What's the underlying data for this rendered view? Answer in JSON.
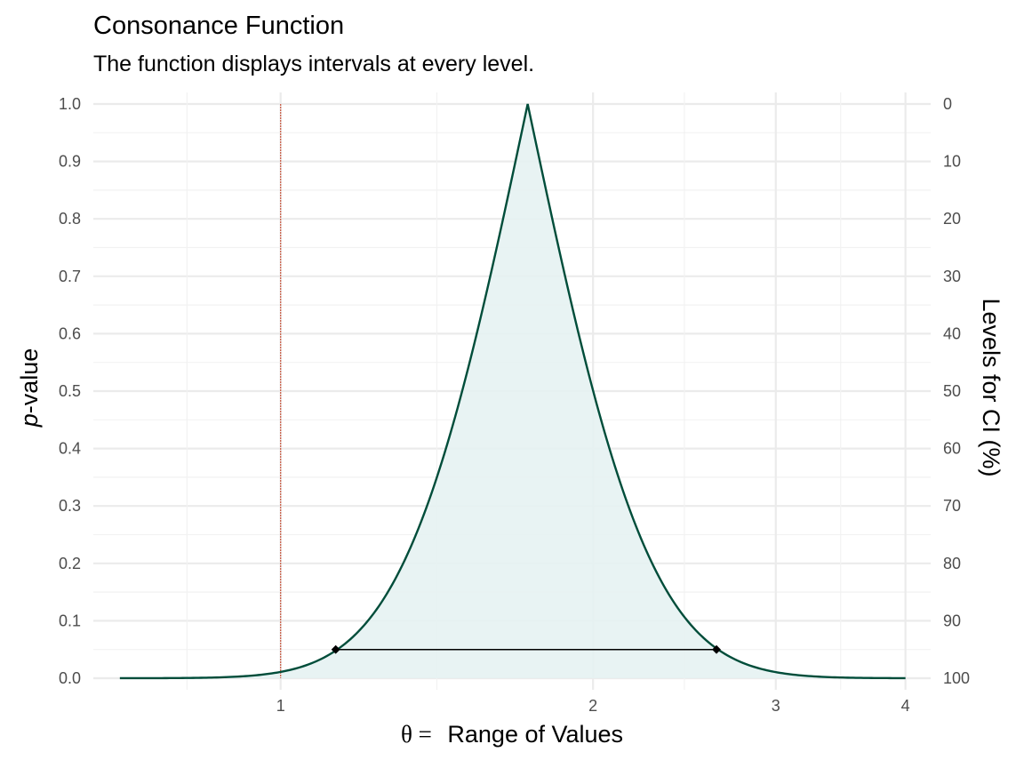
{
  "chart_data": {
    "type": "area",
    "title": "Consonance Function",
    "subtitle": "The function displays intervals at every level.",
    "xlabel_symbol": "θ =",
    "xlabel": "Range of Values",
    "ylabel_italic": "p",
    "ylabel_rest": "-value",
    "y2label": "Levels for CI (%)",
    "x_scale": "log",
    "xlim": [
      0.66,
      4.23
    ],
    "ylim": [
      0,
      1
    ],
    "x_ticks": [
      1,
      2,
      3,
      4
    ],
    "x_tick_labels": [
      "1",
      "2",
      "3",
      "4"
    ],
    "y_ticks": [
      0,
      0.1,
      0.2,
      0.3,
      0.4,
      0.5,
      0.6,
      0.7,
      0.8,
      0.9,
      1.0
    ],
    "y_tick_labels": [
      "0.0",
      "0.1",
      "0.2",
      "0.3",
      "0.4",
      "0.5",
      "0.6",
      "0.7",
      "0.8",
      "0.9",
      "1.0"
    ],
    "y2_tick_labels": [
      "100",
      "90",
      "80",
      "70",
      "60",
      "50",
      "40",
      "30",
      "20",
      "10",
      "0"
    ],
    "point_estimate": 1.73,
    "curve_range": [
      0.7,
      4.0
    ],
    "series": [
      {
        "x_start": 0.7,
        "x_end": 4.0,
        "peak_x": 1.73,
        "peak_p": 1.0
      }
    ],
    "interval": {
      "level": 0.95,
      "p": 0.05,
      "lower": 1.13,
      "upper": 2.63
    },
    "null_line_x": 1,
    "grid": true,
    "colors": {
      "curve": "#004d3a",
      "fill": "#e6f2f2",
      "null_line": "#c8553d",
      "interval": "#000000"
    }
  }
}
